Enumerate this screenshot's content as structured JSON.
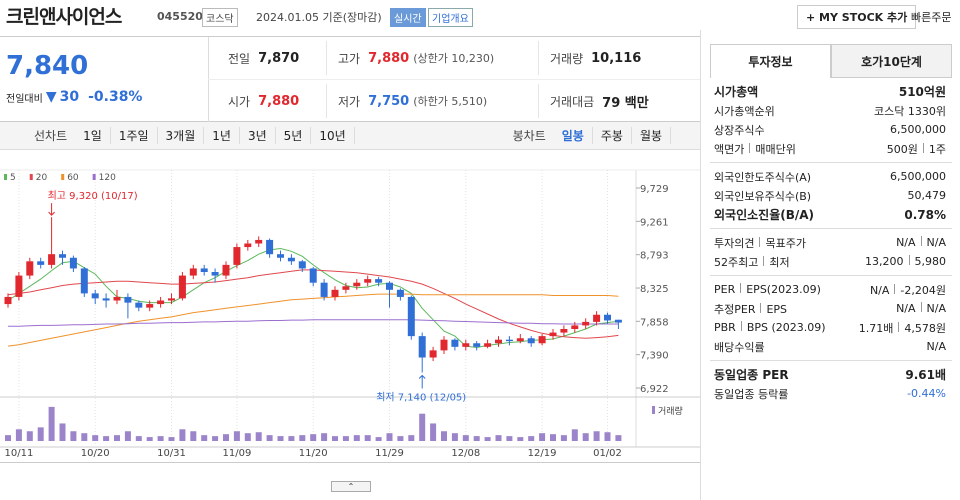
{
  "header": {
    "name": "크린앤사이언스",
    "code": "045520",
    "market": "코스닥",
    "date": "2024.01.05 기준(장마감)",
    "realtime": "실시간",
    "overview": "기업개요",
    "mystock": "+ MY STOCK 추가",
    "quick_order": "빠른주문"
  },
  "quote": {
    "price": "7,840",
    "change_label": "전일대비",
    "change": "30",
    "change_pct": "-0.38%",
    "cells": [
      {
        "label": "전일",
        "value": "7,870"
      },
      {
        "label": "고가",
        "value": "7,880",
        "sub": "(상한가 10,230)"
      },
      {
        "label": "거래량",
        "value": "10,116"
      },
      {
        "label": "시가",
        "value": "7,880"
      },
      {
        "label": "저가",
        "value": "7,750",
        "sub": "(하한가 5,510)"
      },
      {
        "label": "거래대금",
        "value": "79 백만"
      }
    ]
  },
  "toolbar": {
    "line_label": "선차트",
    "periods": [
      "1일",
      "1주일",
      "3개월",
      "1년",
      "3년",
      "5년",
      "10년"
    ],
    "candle_label": "봉차트",
    "candles": [
      "일봉",
      "주봉",
      "월봉"
    ],
    "active_candle": 0
  },
  "chart": {
    "type": "candlestick",
    "up_color": "#e0282e",
    "down_color": "#2f6fd6",
    "volume_color": "#9b84c9",
    "ylim": [
      6922,
      9729
    ],
    "yticks": [
      {
        "value": 9729,
        "label": "9,729"
      },
      {
        "value": 9261,
        "label": "9,261"
      },
      {
        "value": 8793,
        "label": "8,793"
      },
      {
        "value": 8325,
        "label": "8,325"
      },
      {
        "value": 7858,
        "label": "7,858"
      },
      {
        "value": 7390,
        "label": "7,390"
      },
      {
        "value": 6922,
        "label": "6,922"
      }
    ],
    "high_label": "최고 9,320 (10/17)",
    "low_label": "최저 7,140 (12/05)",
    "volume_name": "거래량",
    "volume_lim": [
      0,
      40
    ],
    "dates": [
      null,
      "10/11",
      null,
      null,
      null,
      null,
      null,
      null,
      "10/20",
      null,
      null,
      null,
      null,
      null,
      null,
      "10/31",
      null,
      null,
      null,
      null,
      null,
      "11/09",
      null,
      null,
      null,
      null,
      null,
      null,
      "11/20",
      null,
      null,
      null,
      null,
      null,
      null,
      "11/29",
      null,
      null,
      null,
      null,
      null,
      null,
      "12/08",
      null,
      null,
      null,
      null,
      null,
      null,
      "12/19",
      null,
      null,
      null,
      null,
      null,
      "01/02",
      null
    ],
    "candles": [
      [
        8100,
        8250,
        8050,
        8200
      ],
      [
        8200,
        8550,
        8150,
        8500
      ],
      [
        8500,
        8750,
        8450,
        8700
      ],
      [
        8700,
        8750,
        8600,
        8650
      ],
      [
        8650,
        9320,
        8600,
        8800
      ],
      [
        8800,
        8850,
        8650,
        8750
      ],
      [
        8750,
        8780,
        8550,
        8600
      ],
      [
        8600,
        8620,
        8200,
        8250
      ],
      [
        8250,
        8300,
        8100,
        8180
      ],
      [
        8180,
        8250,
        8050,
        8150
      ],
      [
        8150,
        8300,
        8100,
        8200
      ],
      [
        8200,
        8250,
        7900,
        8120
      ],
      [
        8120,
        8150,
        8000,
        8050
      ],
      [
        8050,
        8150,
        8000,
        8100
      ],
      [
        8100,
        8200,
        8050,
        8150
      ],
      [
        8150,
        8250,
        8100,
        8180
      ],
      [
        8180,
        8550,
        8150,
        8500
      ],
      [
        8500,
        8650,
        8450,
        8600
      ],
      [
        8600,
        8650,
        8500,
        8550
      ],
      [
        8550,
        8600,
        8400,
        8500
      ],
      [
        8500,
        8700,
        8450,
        8650
      ],
      [
        8650,
        8950,
        8600,
        8900
      ],
      [
        8900,
        9000,
        8850,
        8950
      ],
      [
        8950,
        9050,
        8900,
        9000
      ],
      [
        9000,
        9020,
        8750,
        8800
      ],
      [
        8800,
        8850,
        8700,
        8750
      ],
      [
        8750,
        8800,
        8650,
        8700
      ],
      [
        8700,
        8720,
        8550,
        8600
      ],
      [
        8600,
        8620,
        8350,
        8400
      ],
      [
        8400,
        8450,
        8150,
        8200
      ],
      [
        8200,
        8350,
        8150,
        8300
      ],
      [
        8300,
        8400,
        8250,
        8350
      ],
      [
        8350,
        8450,
        8300,
        8400
      ],
      [
        8400,
        8500,
        8350,
        8450
      ],
      [
        8450,
        8480,
        8350,
        8400
      ],
      [
        8400,
        8420,
        8050,
        8300
      ],
      [
        8300,
        8320,
        8150,
        8200
      ],
      [
        8200,
        8220,
        7600,
        7650
      ],
      [
        7650,
        7700,
        7140,
        7350
      ],
      [
        7350,
        7500,
        7300,
        7450
      ],
      [
        7450,
        7650,
        7400,
        7600
      ],
      [
        7600,
        7620,
        7450,
        7500
      ],
      [
        7500,
        7600,
        7450,
        7550
      ],
      [
        7550,
        7580,
        7450,
        7500
      ],
      [
        7500,
        7600,
        7480,
        7550
      ],
      [
        7550,
        7650,
        7500,
        7600
      ],
      [
        7600,
        7650,
        7520,
        7580
      ],
      [
        7580,
        7680,
        7550,
        7620
      ],
      [
        7620,
        7650,
        7500,
        7550
      ],
      [
        7550,
        7680,
        7520,
        7650
      ],
      [
        7650,
        7750,
        7600,
        7700
      ],
      [
        7700,
        7800,
        7650,
        7750
      ],
      [
        7750,
        7850,
        7700,
        7800
      ],
      [
        7800,
        7900,
        7750,
        7850
      ],
      [
        7850,
        8000,
        7800,
        7950
      ],
      [
        7950,
        7980,
        7820,
        7870
      ],
      [
        7880,
        7880,
        7750,
        7840
      ]
    ],
    "volume": [
      6,
      12,
      10,
      14,
      35,
      18,
      10,
      8,
      6,
      5,
      6,
      10,
      5,
      4,
      5,
      4,
      12,
      10,
      6,
      5,
      7,
      10,
      8,
      9,
      6,
      5,
      5,
      6,
      7,
      8,
      5,
      5,
      6,
      6,
      4,
      8,
      5,
      6,
      28,
      18,
      10,
      8,
      6,
      5,
      4,
      6,
      5,
      4,
      5,
      8,
      7,
      6,
      12,
      8,
      10,
      9,
      6
    ],
    "series": [
      {
        "name": "5",
        "color": "#5cb85c",
        "values": [
          8150,
          8250,
          8350,
          8450,
          8570,
          8680,
          8700,
          8610,
          8520,
          8350,
          8200,
          8180,
          8140,
          8120,
          8120,
          8120,
          8200,
          8300,
          8400,
          8470,
          8560,
          8640,
          8710,
          8800,
          8860,
          8880,
          8840,
          8770,
          8650,
          8540,
          8440,
          8360,
          8330,
          8340,
          8380,
          8390,
          8340,
          8250,
          8040,
          7880,
          7720,
          7650,
          7510,
          7490,
          7520,
          7540,
          7560,
          7570,
          7590,
          7600,
          7610,
          7650,
          7700,
          7750,
          7820,
          7840,
          7860
        ]
      },
      {
        "name": "20",
        "color": "#e0484e",
        "values": [
          8230,
          8250,
          8270,
          8300,
          8330,
          8360,
          8380,
          8390,
          8400,
          8410,
          8420,
          8420,
          8410,
          8400,
          8390,
          8380,
          8380,
          8390,
          8400,
          8410,
          8430,
          8450,
          8470,
          8500,
          8520,
          8540,
          8560,
          8580,
          8580,
          8570,
          8560,
          8550,
          8540,
          8520,
          8500,
          8480,
          8450,
          8420,
          8380,
          8320,
          8250,
          8180,
          8100,
          8030,
          7960,
          7890,
          7830,
          7780,
          7730,
          7690,
          7660,
          7640,
          7630,
          7620,
          7630,
          7640,
          7660
        ]
      },
      {
        "name": "60",
        "color": "#f0922b",
        "values": [
          7510,
          7530,
          7560,
          7590,
          7620,
          7650,
          7680,
          7710,
          7740,
          7770,
          7800,
          7830,
          7860,
          7880,
          7900,
          7920,
          7950,
          7980,
          8000,
          8020,
          8040,
          8060,
          8080,
          8100,
          8120,
          8140,
          8160,
          8170,
          8180,
          8190,
          8200,
          8210,
          8220,
          8230,
          8240,
          8240,
          8240,
          8240,
          8230,
          8230,
          8230,
          8230,
          8230,
          8230,
          8230,
          8230,
          8230,
          8230,
          8230,
          8230,
          8220,
          8220,
          8220,
          8220,
          8220,
          8220,
          8210
        ]
      },
      {
        "name": "120",
        "color": "#9b6fd0",
        "values": [
          7790,
          7790,
          7795,
          7800,
          7800,
          7805,
          7810,
          7810,
          7815,
          7820,
          7820,
          7825,
          7830,
          7830,
          7835,
          7840,
          7840,
          7845,
          7850,
          7850,
          7855,
          7860,
          7860,
          7865,
          7870,
          7870,
          7875,
          7875,
          7880,
          7880,
          7880,
          7880,
          7880,
          7880,
          7880,
          7880,
          7880,
          7880,
          7875,
          7870,
          7865,
          7860,
          7855,
          7850,
          7845,
          7840,
          7835,
          7830,
          7830,
          7825,
          7825,
          7820,
          7820,
          7820,
          7820,
          7820,
          7820
        ]
      }
    ]
  },
  "info": {
    "tabs": [
      "투자정보",
      "호가10단계"
    ],
    "groups": [
      [
        {
          "labels": [
            "시가총액"
          ],
          "values": [
            "510억원"
          ],
          "bold": true
        },
        {
          "labels": [
            "시가총액순위"
          ],
          "values": [
            "코스닥 1330위"
          ]
        },
        {
          "labels": [
            "상장주식수"
          ],
          "values": [
            "6,500,000"
          ]
        },
        {
          "labels": [
            "액면가",
            "매매단위"
          ],
          "values": [
            "500원",
            "1주"
          ]
        }
      ],
      [
        {
          "labels": [
            "외국인한도주식수(A)"
          ],
          "values": [
            "6,500,000"
          ]
        },
        {
          "labels": [
            "외국인보유주식수(B)"
          ],
          "values": [
            "50,479"
          ]
        },
        {
          "labels": [
            "외국인소진율(B/A)"
          ],
          "values": [
            "0.78%"
          ],
          "bold": true
        }
      ],
      [
        {
          "labels": [
            "투자의견",
            "목표주가"
          ],
          "values": [
            "N/A",
            "N/A"
          ]
        },
        {
          "labels": [
            "52주최고",
            "최저"
          ],
          "values": [
            "13,200",
            "5,980"
          ]
        }
      ],
      [
        {
          "labels": [
            "PER",
            "EPS(2023.09)"
          ],
          "values": [
            "N/A",
            "-2,204원"
          ]
        },
        {
          "labels": [
            "추정PER",
            "EPS"
          ],
          "values": [
            "N/A",
            "N/A"
          ]
        },
        {
          "labels": [
            "PBR",
            "BPS (2023.09)"
          ],
          "values": [
            "1.71배",
            "4,578원"
          ]
        },
        {
          "labels": [
            "배당수익률"
          ],
          "values": [
            "N/A"
          ]
        }
      ],
      [
        {
          "labels": [
            "동일업종 PER"
          ],
          "values": [
            "9.61배"
          ],
          "bold": true
        },
        {
          "labels": [
            "동일업종 등락률"
          ],
          "values": [
            "-0.44%"
          ],
          "blue": true
        }
      ]
    ]
  }
}
